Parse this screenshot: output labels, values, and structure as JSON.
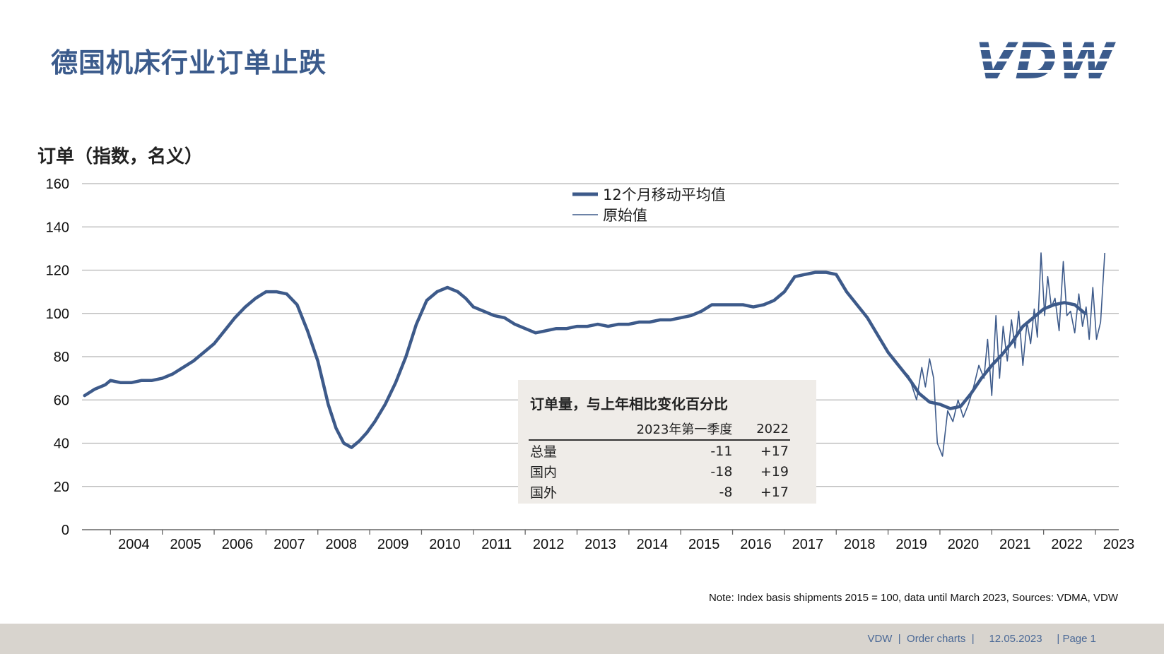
{
  "page": {
    "title": "德国机床行业订单止跌",
    "logo_text": "VDW",
    "note": "Note: Index basis shipments 2015 = 100, data until March 2023, Sources: VDMA, VDW",
    "footer": {
      "org": "VDW",
      "sep1": "  |  ",
      "section": "Order charts",
      "sep2": "  |     ",
      "date": "12.05.2023",
      "sep3": "     | ",
      "page": "Page 1"
    }
  },
  "colors": {
    "title": "#3b5b8c",
    "series": "#3d5a8a",
    "grid": "#b5b5b5",
    "inset_bg": "#efece8",
    "footer_bg": "#d8d4ce",
    "footer_text": "#4a6896"
  },
  "inset": {
    "title": "订单量，与上年相比变化百分比",
    "columns": [
      "",
      "2023年第一季度",
      "2022"
    ],
    "rows": [
      {
        "label": "总量",
        "q1_2023": "-11",
        "y2022": "+17"
      },
      {
        "label": "国内",
        "q1_2023": "-18",
        "y2022": "+19"
      },
      {
        "label": "国外",
        "q1_2023": "-8",
        "y2022": "+17"
      }
    ]
  },
  "chart_data": {
    "type": "line",
    "ylabel": "订单（指数，名义）",
    "xlabel": "",
    "ylim": [
      0,
      160
    ],
    "yticks": [
      0,
      20,
      40,
      60,
      80,
      100,
      120,
      140,
      160
    ],
    "xlim": [
      2003.45,
      2023.45
    ],
    "xticks": [
      "2004",
      "2005",
      "2006",
      "2007",
      "2008",
      "2009",
      "2010",
      "2011",
      "2012",
      "2013",
      "2014",
      "2015",
      "2016",
      "2017",
      "2018",
      "2019",
      "2020",
      "2021",
      "2022",
      "2023"
    ],
    "grid": true,
    "legend_position": "top-center",
    "series": [
      {
        "name": "12个月移动平均值",
        "style": "thick",
        "x": [
          2003.5,
          2003.7,
          2003.9,
          2004.0,
          2004.2,
          2004.4,
          2004.6,
          2004.8,
          2005.0,
          2005.2,
          2005.4,
          2005.6,
          2005.8,
          2006.0,
          2006.2,
          2006.4,
          2006.6,
          2006.8,
          2007.0,
          2007.2,
          2007.4,
          2007.6,
          2007.8,
          2008.0,
          2008.1,
          2008.2,
          2008.35,
          2008.5,
          2008.65,
          2008.8,
          2008.95,
          2009.1,
          2009.3,
          2009.5,
          2009.7,
          2009.9,
          2010.1,
          2010.3,
          2010.5,
          2010.7,
          2010.85,
          2011.0,
          2011.2,
          2011.4,
          2011.6,
          2011.8,
          2012.0,
          2012.2,
          2012.4,
          2012.6,
          2012.8,
          2013.0,
          2013.2,
          2013.4,
          2013.6,
          2013.8,
          2014.0,
          2014.2,
          2014.4,
          2014.6,
          2014.8,
          2015.0,
          2015.2,
          2015.4,
          2015.6,
          2015.8,
          2016.0,
          2016.2,
          2016.4,
          2016.6,
          2016.8,
          2017.0,
          2017.2,
          2017.4,
          2017.6,
          2017.8,
          2018.0,
          2018.2,
          2018.4,
          2018.6,
          2018.8,
          2019.0,
          2019.2,
          2019.4,
          2019.6,
          2019.8,
          2020.0,
          2020.2,
          2020.4,
          2020.6,
          2020.8,
          2021.0,
          2021.2,
          2021.4,
          2021.6,
          2021.8,
          2022.0,
          2022.2,
          2022.4,
          2022.6,
          2022.8
        ],
        "values": [
          62,
          65,
          67,
          69,
          68,
          68,
          69,
          69,
          70,
          72,
          75,
          78,
          82,
          86,
          92,
          98,
          103,
          107,
          110,
          110,
          109,
          104,
          92,
          78,
          68,
          58,
          47,
          40,
          38,
          41,
          45,
          50,
          58,
          68,
          80,
          95,
          106,
          110,
          112,
          110,
          107,
          103,
          101,
          99,
          98,
          95,
          93,
          91,
          92,
          93,
          93,
          94,
          94,
          95,
          94,
          95,
          95,
          96,
          96,
          97,
          97,
          98,
          99,
          101,
          104,
          104,
          104,
          104,
          103,
          104,
          106,
          110,
          117,
          118,
          119,
          119,
          118,
          110,
          104,
          98,
          90,
          82,
          76,
          70,
          63,
          59,
          58,
          56,
          57,
          63,
          70,
          76,
          81,
          87,
          94,
          98,
          102,
          104,
          105,
          104,
          100
        ]
      },
      {
        "name": "原始值",
        "style": "thin",
        "x": [
          2019.0,
          2019.2,
          2019.4,
          2019.55,
          2019.65,
          2019.72,
          2019.8,
          2019.88,
          2019.95,
          2020.05,
          2020.15,
          2020.25,
          2020.35,
          2020.45,
          2020.55,
          2020.65,
          2020.75,
          2020.85,
          2020.92,
          2021.0,
          2021.08,
          2021.15,
          2021.22,
          2021.3,
          2021.38,
          2021.45,
          2021.52,
          2021.6,
          2021.68,
          2021.75,
          2021.82,
          2021.88,
          2021.95,
          2022.02,
          2022.08,
          2022.15,
          2022.22,
          2022.3,
          2022.38,
          2022.45,
          2022.52,
          2022.6,
          2022.68,
          2022.75,
          2022.82,
          2022.88,
          2022.95,
          2023.02,
          2023.1,
          2023.18
        ],
        "values": [
          82,
          76,
          71,
          60,
          75,
          66,
          79,
          70,
          40,
          34,
          55,
          50,
          60,
          52,
          58,
          66,
          76,
          70,
          88,
          62,
          99,
          70,
          94,
          78,
          97,
          84,
          101,
          76,
          96,
          86,
          102,
          89,
          128,
          99,
          117,
          103,
          107,
          92,
          124,
          99,
          101,
          91,
          109,
          94,
          103,
          88,
          112,
          88,
          96,
          128
        ]
      }
    ]
  }
}
